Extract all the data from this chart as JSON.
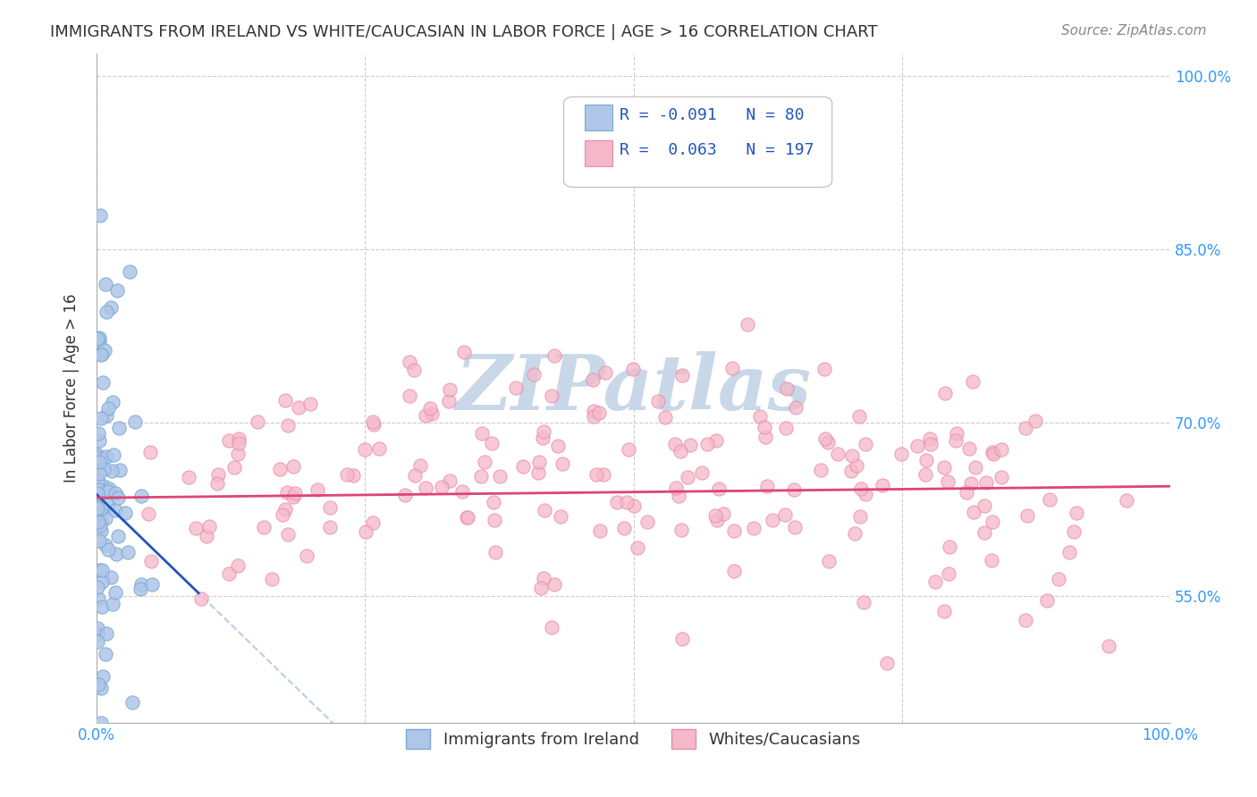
{
  "title": "IMMIGRANTS FROM IRELAND VS WHITE/CAUCASIAN IN LABOR FORCE | AGE > 16 CORRELATION CHART",
  "source": "Source: ZipAtlas.com",
  "ylabel": "In Labor Force | Age > 16",
  "xlabel": "",
  "xlim": [
    0.0,
    1.0
  ],
  "ylim": [
    0.44,
    1.02
  ],
  "yticks": [
    0.55,
    0.7,
    0.85,
    1.0
  ],
  "ytick_labels": [
    "55.0%",
    "70.0%",
    "85.0%",
    "100.0%"
  ],
  "grid_color": "#cccccc",
  "background_color": "#ffffff",
  "watermark_text": "ZIPatlas",
  "watermark_color": "#c8d8e8",
  "ireland_color": "#aec6e8",
  "ireland_edge_color": "#7aa8d4",
  "caucasian_color": "#f5b8c8",
  "caucasian_edge_color": "#e88aaa",
  "ireland_R": -0.091,
  "ireland_N": 80,
  "caucasian_R": 0.063,
  "caucasian_N": 197,
  "trend_blue_color": "#2255bb",
  "trend_pink_color": "#dd4477",
  "trend_blue_dash_color": "#aaccee",
  "tick_color": "#3399ff",
  "legend_R_color": "#2255bb"
}
